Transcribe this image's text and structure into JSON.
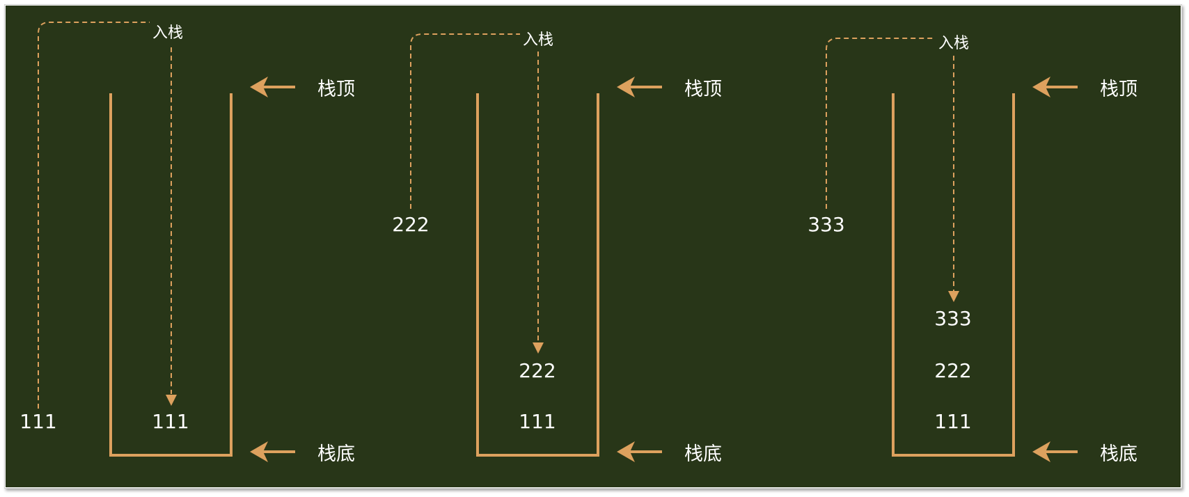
{
  "labels": {
    "top": "栈顶",
    "bottom": "栈底",
    "push": "入栈"
  },
  "colors": {
    "background": "#283618",
    "accent": "#DDA15E",
    "text": "#ffffff"
  },
  "stages": [
    {
      "incoming": "111",
      "contents": [
        "111"
      ]
    },
    {
      "incoming": "222",
      "contents": [
        "111",
        "222"
      ]
    },
    {
      "incoming": "333",
      "contents": [
        "111",
        "222",
        "333"
      ]
    }
  ]
}
